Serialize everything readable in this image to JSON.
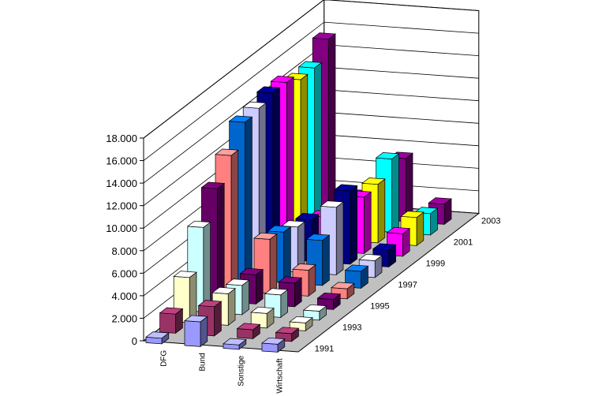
{
  "chart_data": {
    "type": "bar3d",
    "title": "",
    "xlabel": "",
    "ylabel": "",
    "ylim": [
      0,
      18000
    ],
    "y_ticks": [
      "0",
      "2.000",
      "4.000",
      "6.000",
      "8.000",
      "10.000",
      "12.000",
      "14.000",
      "16.000",
      "18.000"
    ],
    "categories": [
      "DFG",
      "Bund",
      "Sonstige",
      "Wirtschaft"
    ],
    "depth_labels": [
      "1991",
      "1993",
      "1995",
      "1997",
      "1999",
      "2001",
      "2003"
    ],
    "series": [
      {
        "name": "1991",
        "color": "#9999FF",
        "values": [
          500,
          2200,
          400,
          700
        ]
      },
      {
        "name": "1992",
        "color": "#993366",
        "values": [
          1700,
          2600,
          800,
          700
        ]
      },
      {
        "name": "1993",
        "color": "#FFFFCC",
        "values": [
          4000,
          2800,
          1300,
          700
        ]
      },
      {
        "name": "1994",
        "color": "#CCFFFF",
        "values": [
          7500,
          2600,
          2000,
          800
        ]
      },
      {
        "name": "1995",
        "color": "#660066",
        "values": [
          10000,
          2600,
          2100,
          900
        ]
      },
      {
        "name": "1996",
        "color": "#FF8080",
        "values": [
          12000,
          4800,
          2300,
          900
        ]
      },
      {
        "name": "1997",
        "color": "#0066CC",
        "values": [
          14000,
          4500,
          4000,
          1500
        ]
      },
      {
        "name": "1998",
        "color": "#CCCCFF",
        "values": [
          14300,
          4000,
          6000,
          1500
        ]
      },
      {
        "name": "1999",
        "color": "#000080",
        "values": [
          14700,
          3700,
          6500,
          1500
        ]
      },
      {
        "name": "2000",
        "color": "#FF00FF",
        "values": [
          14700,
          3000,
          5000,
          2000
        ]
      },
      {
        "name": "2001",
        "color": "#FFFF00",
        "values": [
          14000,
          2500,
          5200,
          2500
        ]
      },
      {
        "name": "2002",
        "color": "#00FFFF",
        "values": [
          14100,
          2300,
          6500,
          1900
        ]
      },
      {
        "name": "2003",
        "color": "#800080",
        "values": [
          15700,
          2000,
          5600,
          1800
        ]
      }
    ]
  }
}
